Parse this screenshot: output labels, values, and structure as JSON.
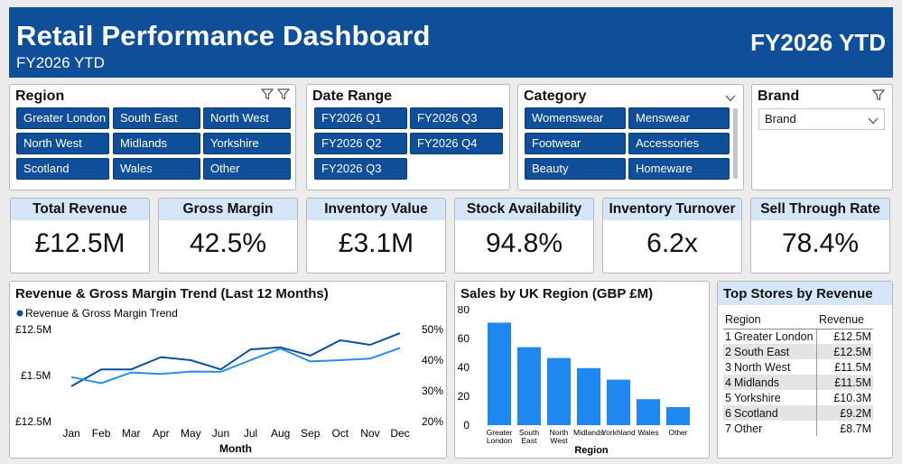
{
  "header": {
    "title": "Retail Performance Dashboard",
    "subtitle": "FY2026 YTD",
    "badge": "FY2026 YTD"
  },
  "filters": {
    "region": {
      "title": "Region",
      "options": [
        "Greater London",
        "South East",
        "North West",
        "North West",
        "Midlands",
        "Yorkshire",
        "Scotland",
        "Wales",
        "Other"
      ]
    },
    "date_range": {
      "title": "Date Range",
      "options": [
        "FY2026 Q1",
        "FY2026 Q3",
        "FY2026 Q2",
        "FY2026 Q4",
        "FY2026 Q3"
      ]
    },
    "category": {
      "title": "Category",
      "options": [
        "Womenswear",
        "Menswear",
        "Footwear",
        "Accessories",
        "Beauty",
        "Homeware"
      ]
    },
    "brand": {
      "title": "Brand",
      "dropdown_value": "Brand"
    }
  },
  "kpis": [
    {
      "label": "Total Revenue",
      "value": "£12.5M"
    },
    {
      "label": "Gross Margin",
      "value": "42.5%"
    },
    {
      "label": "Inventory Value",
      "value": "£3.1M"
    },
    {
      "label": "Stock Availability",
      "value": "94.8%"
    },
    {
      "label": "Inventory Turnover",
      "value": "6.2x"
    },
    {
      "label": "Sell Through Rate",
      "value": "78.4%"
    }
  ],
  "icons": {
    "filter": "filter-icon",
    "chevron": "chevron-down-icon"
  },
  "colors": {
    "header": "#0f4f99",
    "chip": "#0f4f99",
    "kpi_header": "#d6e6f8",
    "dark_line": "#0f4f99",
    "light_line": "#2a8be8",
    "bar": "#1e88f0"
  },
  "trend": {
    "title": "Revenue & Gross Margin Trend (Last 12 Months)",
    "legend": "Revenue & Gross Margin Trend",
    "left_ticks": [
      "£12.5M",
      "£1.5M",
      "£12.5M"
    ],
    "right_ticks": [
      "50%",
      "40%",
      "30%",
      "20%"
    ],
    "xlabel": "Month"
  },
  "region_chart": {
    "title": "Sales by UK Region (GBP £M)",
    "xlabel": "Region",
    "tick_labels": [
      "0",
      "20",
      "40",
      "60",
      "80"
    ]
  },
  "top_stores": {
    "title": "Top Stores by Revenue",
    "col_region": "Region",
    "col_revenue": "Revenue",
    "rows": [
      {
        "rank": "1",
        "name": "Greater London",
        "revenue": "£12.5M"
      },
      {
        "rank": "2",
        "name": "South East",
        "revenue": "£12.5M"
      },
      {
        "rank": "3",
        "name": "North West",
        "revenue": "£11.5M"
      },
      {
        "rank": "4",
        "name": "Midlands",
        "revenue": "£11.5M"
      },
      {
        "rank": "5",
        "name": "Yorkshire",
        "revenue": "£10.3M"
      },
      {
        "rank": "6",
        "name": "Scotland",
        "revenue": "£9.2M"
      },
      {
        "rank": "7",
        "name": "Other",
        "revenue": "£8.7M"
      }
    ]
  },
  "chart_data": [
    {
      "type": "line",
      "title": "Revenue & Gross Margin Trend (Last 12 Months)",
      "xlabel": "Month",
      "categories": [
        "Jan",
        "Feb",
        "Mar",
        "Apr",
        "May",
        "Jun",
        "Jul",
        "Aug",
        "Sep",
        "Oct",
        "Nov",
        "Dec"
      ],
      "ylim_right": [
        20,
        50
      ],
      "series": [
        {
          "name": "Revenue & Gross Margin Trend",
          "axis": "right",
          "values": [
            31.5,
            37,
            37,
            41,
            40,
            37,
            43.5,
            44.2,
            41.5,
            46.5,
            45,
            48.8
          ]
        },
        {
          "values": [
            34.5,
            32.5,
            36,
            35.5,
            36.3,
            36.2,
            40,
            43.8,
            39.6,
            40,
            40.5,
            44
          ]
        }
      ],
      "legend": "top-left",
      "grid": false
    },
    {
      "type": "bar",
      "title": "Sales by UK Region (GBP £M)",
      "xlabel": "Region",
      "categories": [
        "Greater London",
        "South East",
        "North West",
        "Midlands",
        "Yorkhland",
        "Wales",
        "Other"
      ],
      "category_lines": [
        [
          "Greater",
          "London"
        ],
        [
          "South",
          "East"
        ],
        [
          "North",
          "West"
        ],
        [
          "Midlands"
        ],
        [
          "Yorkhland"
        ],
        [
          "Wales"
        ],
        [
          "Other"
        ]
      ],
      "values": [
        71,
        54,
        46.5,
        39.5,
        31.5,
        18,
        12.5
      ],
      "ylim": [
        0,
        80
      ],
      "yticks": [
        0,
        20,
        40,
        60,
        80
      ],
      "grid": false
    }
  ]
}
